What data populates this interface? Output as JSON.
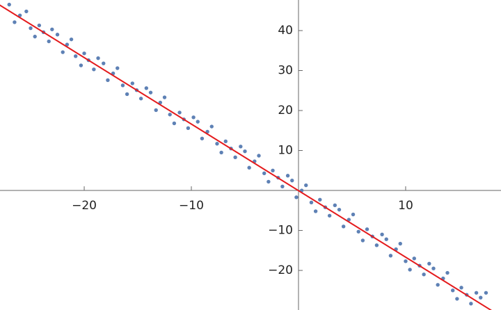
{
  "chart_data": {
    "type": "scatter",
    "x": [
      -27,
      -26.5,
      -26,
      -25.4,
      -25,
      -24.6,
      -24.2,
      -23.8,
      -23.3,
      -23,
      -22.5,
      -22,
      -21.6,
      -21.2,
      -20.8,
      -20.3,
      -20,
      -19.6,
      -19.1,
      -18.7,
      -18.2,
      -17.8,
      -17.3,
      -16.9,
      -16.4,
      -16,
      -15.5,
      -15.1,
      -14.7,
      -14.2,
      -13.8,
      -13.3,
      -12.9,
      -12.5,
      -12,
      -11.6,
      -11.1,
      -10.7,
      -10.3,
      -9.8,
      -9.4,
      -9,
      -8.5,
      -8.1,
      -7.6,
      -7.2,
      -6.8,
      -6.3,
      -5.9,
      -5.4,
      -5,
      -4.6,
      -4.1,
      -3.7,
      -3.2,
      -2.8,
      -2.4,
      -1.9,
      -1.5,
      -1,
      -0.6,
      -0.2,
      0.3,
      0.7,
      1.2,
      1.6,
      2,
      2.5,
      2.9,
      3.4,
      3.8,
      4.2,
      4.7,
      5.1,
      5.6,
      6,
      6.4,
      6.9,
      7.3,
      7.8,
      8.2,
      8.6,
      9.1,
      9.5,
      10,
      10.4,
      10.8,
      11.3,
      11.7,
      12.2,
      12.6,
      13,
      13.5,
      13.9,
      14.4,
      14.8,
      15.2,
      15.7,
      16.1,
      16.6,
      17,
      17.5
    ],
    "values": [
      46.5,
      42.1,
      43.8,
      44.8,
      40.6,
      38.5,
      41.3,
      39.6,
      37.3,
      40.3,
      39.0,
      34.6,
      36.5,
      37.8,
      33.6,
      31.3,
      34.3,
      32.6,
      30.3,
      33.1,
      31.8,
      27.6,
      29.3,
      30.6,
      26.3,
      24.1,
      26.8,
      25.1,
      23.0,
      25.6,
      24.5,
      20.1,
      22.0,
      23.3,
      19.0,
      16.8,
      19.5,
      17.8,
      15.6,
      18.3,
      17.2,
      13.0,
      14.7,
      16.0,
      11.7,
      9.5,
      12.3,
      10.5,
      8.3,
      11.0,
      9.8,
      5.7,
      7.3,
      8.7,
      4.3,
      2.2,
      5.0,
      3.2,
      1.0,
      3.7,
      2.5,
      -1.7,
      0.0,
      1.3,
      -3.0,
      -5.2,
      -2.3,
      -4.2,
      -6.3,
      -3.7,
      -4.8,
      -9.0,
      -7.3,
      -6.0,
      -10.3,
      -12.5,
      -9.7,
      -11.5,
      -13.7,
      -11.0,
      -12.2,
      -16.3,
      -14.7,
      -13.3,
      -17.7,
      -19.8,
      -17.0,
      -18.8,
      -21.0,
      -18.3,
      -19.5,
      -23.6,
      -22.0,
      -20.6,
      -25.0,
      -27.1,
      -24.3,
      -26.1,
      -28.3,
      -25.6,
      -26.8,
      -25.6
    ],
    "color": "#5e81b5",
    "fit": {
      "x": [
        -27.9,
        18.0
      ],
      "values": [
        46.4,
        -30.0
      ],
      "color": "#e41a1c"
    },
    "xlim": [
      -27.86,
      18.9
    ],
    "ylim": [
      -29.9,
      47.65
    ],
    "xticks": [
      {
        "value": -20,
        "label": "−20"
      },
      {
        "value": -10,
        "label": "−10"
      },
      10
    ],
    "yticks": [
      {
        "value": -20,
        "label": "−20"
      },
      {
        "value": -10,
        "label": "−10"
      },
      10,
      20,
      30,
      40
    ]
  }
}
